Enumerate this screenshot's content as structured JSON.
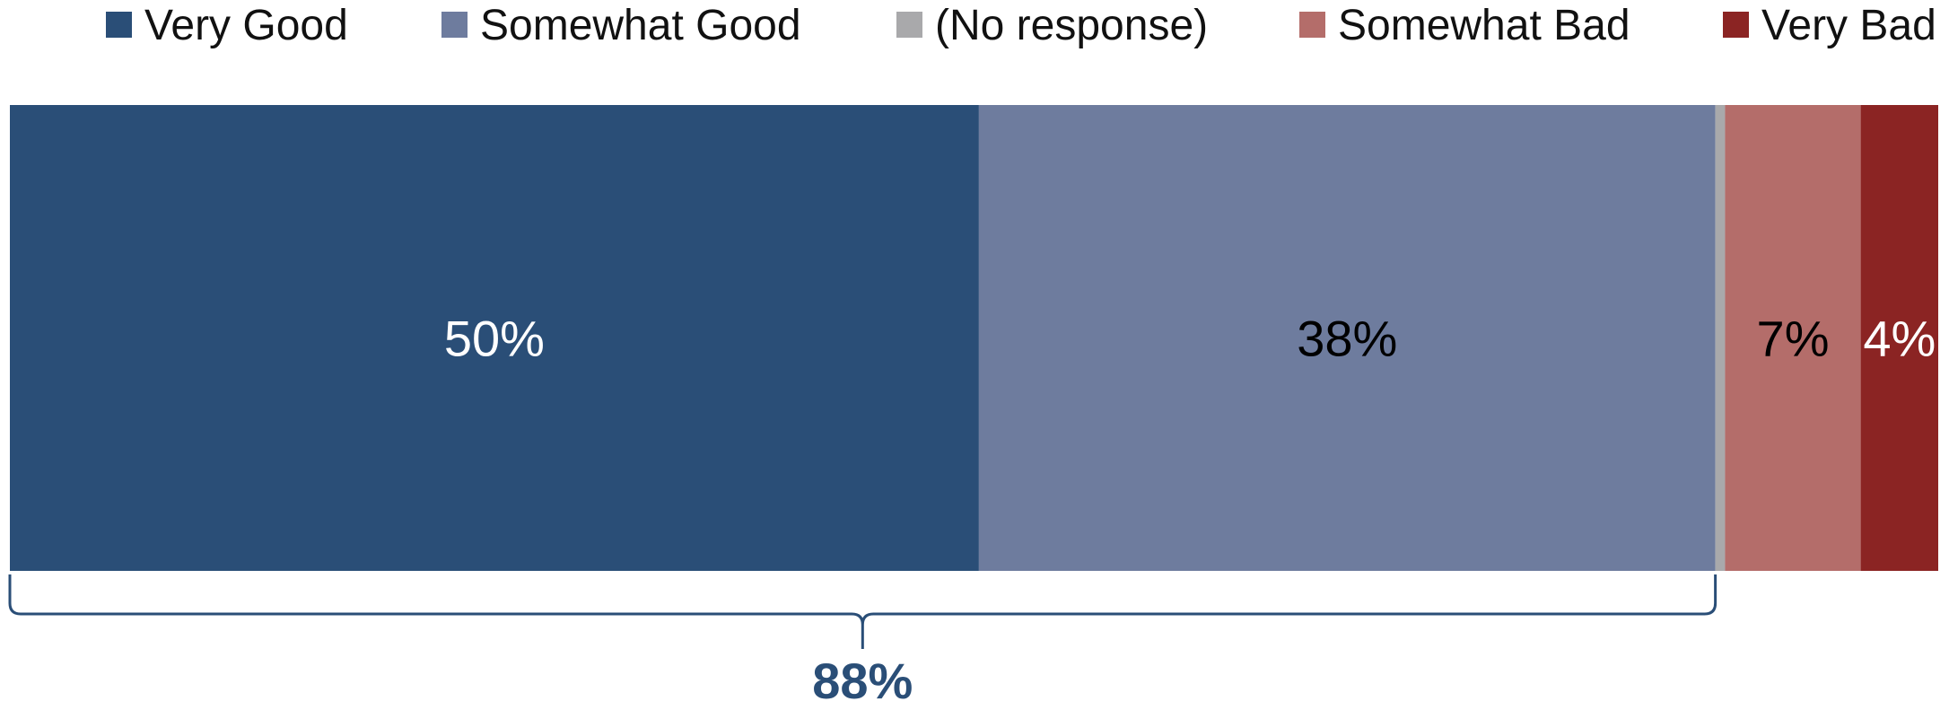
{
  "chart_data": {
    "type": "bar",
    "orientation": "horizontal",
    "stacked": true,
    "categories": [
      ""
    ],
    "series": [
      {
        "name": "Very Good",
        "values": [
          50
        ],
        "color": "#2a4e77",
        "label": "50%",
        "label_color": "#ffffff"
      },
      {
        "name": "Somewhat Good",
        "values": [
          38
        ],
        "color": "#6e7c9e",
        "label": "38%",
        "label_color": "#000000"
      },
      {
        "name": "(No response)",
        "values": [
          0.5
        ],
        "color": "#a9a9ab",
        "label": "",
        "label_color": "#000000"
      },
      {
        "name": "Somewhat Bad",
        "values": [
          7
        ],
        "color": "#b46d6a",
        "label": "7%",
        "label_color": "#000000"
      },
      {
        "name": "Very Bad",
        "values": [
          4
        ],
        "color": "#8b2423",
        "label": "4%",
        "label_color": "#ffffff"
      }
    ],
    "legend_position": "top",
    "grid": false,
    "annotations": [
      {
        "type": "brace",
        "spans": [
          "Very Good",
          "Somewhat Good"
        ],
        "text": "88%",
        "color": "#2a4e77"
      }
    ]
  }
}
